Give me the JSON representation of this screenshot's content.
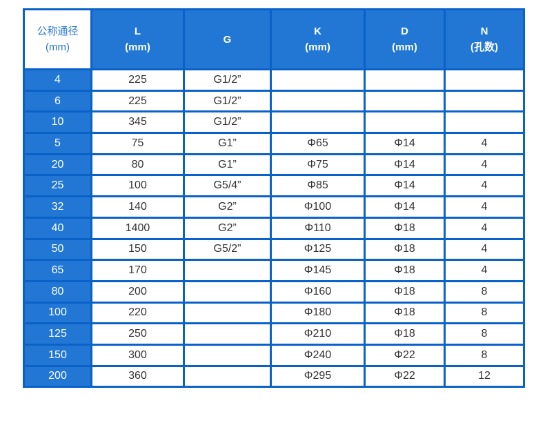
{
  "headers": [
    {
      "line1": "公称通径",
      "line2": "(mm)"
    },
    {
      "line1": "L",
      "line2": "(mm)"
    },
    {
      "line1": "G",
      "line2": ""
    },
    {
      "line1": "K",
      "line2": "(mm)"
    },
    {
      "line1": "D",
      "line2": "(mm)"
    },
    {
      "line1": "N",
      "line2": "(孔数)"
    }
  ],
  "rows": [
    [
      "4",
      "225",
      "G1/2”",
      "",
      "",
      ""
    ],
    [
      "6",
      "225",
      "G1/2”",
      "",
      "",
      ""
    ],
    [
      "10",
      "345",
      "G1/2”",
      "",
      "",
      ""
    ],
    [
      "5",
      "75",
      "G1”",
      "Φ65",
      "Φ14",
      "4"
    ],
    [
      "20",
      "80",
      "G1”",
      "Φ75",
      "Φ14",
      "4"
    ],
    [
      "25",
      "100",
      "G5/4”",
      "Φ85",
      "Φ14",
      "4"
    ],
    [
      "32",
      "140",
      "G2”",
      "Φ100",
      "Φ14",
      "4"
    ],
    [
      "40",
      "1400",
      "G2”",
      "Φ110",
      "Φ18",
      "4"
    ],
    [
      "50",
      "150",
      "G5/2”",
      "Φ125",
      "Φ18",
      "4"
    ],
    [
      "65",
      "170",
      "",
      "Φ145",
      "Φ18",
      "4"
    ],
    [
      "80",
      "200",
      "",
      "Φ160",
      "Φ18",
      "8"
    ],
    [
      "100",
      "220",
      "",
      "Φ180",
      "Φ18",
      "8"
    ],
    [
      "125",
      "250",
      "",
      "Φ210",
      "Φ18",
      "8"
    ],
    [
      "150",
      "300",
      "",
      "Φ240",
      "Φ22",
      "8"
    ],
    [
      "200",
      "360",
      "",
      "Φ295",
      "Φ22",
      "12"
    ]
  ],
  "colors": {
    "header_blue": "#2277d4",
    "border_blue": "#0a62c9"
  }
}
